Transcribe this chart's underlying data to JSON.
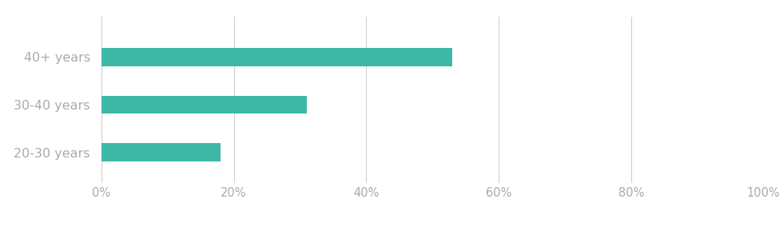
{
  "categories": [
    "20-30 years",
    "30-40 years",
    "40+ years"
  ],
  "values": [
    0.18,
    0.31,
    0.53
  ],
  "bar_color": "#3db8a5",
  "background_color": "#ffffff",
  "label_color": "#aaaaaa",
  "tick_color": "#d0d0d0",
  "label_fontsize": 11.5,
  "tick_fontsize": 10.5,
  "xlim": [
    0,
    1.0
  ],
  "xticks": [
    0.0,
    0.2,
    0.4,
    0.6,
    0.8,
    1.0
  ],
  "xtick_labels": [
    "0%",
    "20%",
    "40%",
    "60%",
    "80%",
    "100%"
  ],
  "bar_height": 0.38
}
